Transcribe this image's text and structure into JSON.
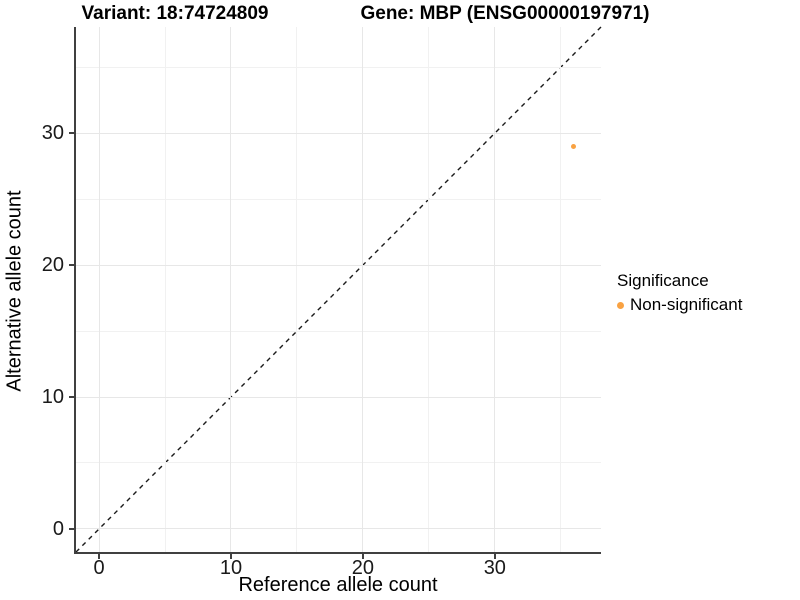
{
  "titles": {
    "variant": "Variant: 18:74724809",
    "gene": "Gene: MBP (ENSG00000197971)"
  },
  "axes": {
    "x": {
      "label": "Reference allele count",
      "tick_labels": [
        "0",
        "10",
        "20",
        "30"
      ]
    },
    "y": {
      "label": "Alternative allele count",
      "tick_labels": [
        "0",
        "10",
        "20",
        "30"
      ]
    }
  },
  "legend": {
    "title": "Significance",
    "items": [
      {
        "label": "Non-significant",
        "color": "#F9A242"
      }
    ]
  },
  "colors": {
    "point": "#F9A242",
    "axis_line": "#404040",
    "grid_major": "#e7e7e7",
    "grid_minor": "#f1f1f1",
    "reference_line": "#1a1a1a",
    "background": "#ffffff"
  },
  "chart_data": {
    "type": "scatter",
    "title": "Variant: 18:74724809   Gene: MBP (ENSG00000197971)",
    "xlabel": "Reference allele count",
    "ylabel": "Alternative allele count",
    "xlim": [
      -1.75,
      38.05
    ],
    "ylim": [
      -1.75,
      38.05
    ],
    "x_ticks": [
      0,
      10,
      20,
      30
    ],
    "y_ticks": [
      0,
      10,
      20,
      30
    ],
    "x_minor_ticks": [
      5,
      15,
      25,
      35
    ],
    "y_minor_ticks": [
      5,
      15,
      25,
      35
    ],
    "grid": "major+minor",
    "legend_position": "right",
    "reference_line": {
      "type": "identity",
      "slope": 1,
      "intercept": 0,
      "style": "dashed",
      "color": "#1a1a1a"
    },
    "series": [
      {
        "name": "Non-significant",
        "color": "#F9A242",
        "points": [
          {
            "x": 36,
            "y": 29
          }
        ]
      }
    ]
  }
}
